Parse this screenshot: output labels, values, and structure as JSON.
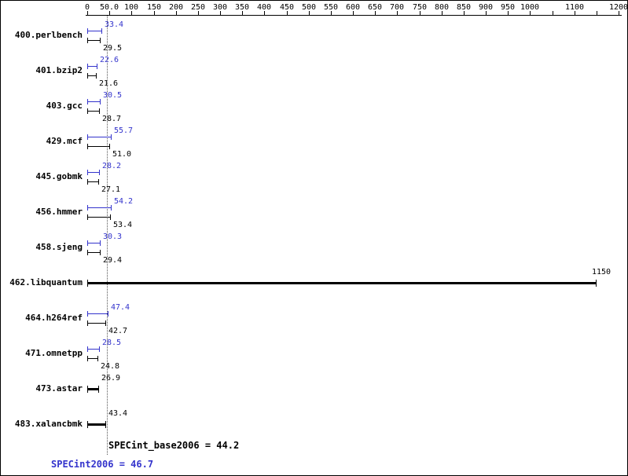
{
  "chart_data": {
    "type": "bar",
    "orientation": "horizontal",
    "axis": {
      "min": 0,
      "max": 1200,
      "tick_step": 50,
      "tick_labels": [
        {
          "v": 0,
          "t": "0"
        },
        {
          "v": 50,
          "t": "50.0"
        },
        {
          "v": 100,
          "t": "100"
        },
        {
          "v": 150,
          "t": "150"
        },
        {
          "v": 200,
          "t": "200"
        },
        {
          "v": 250,
          "t": "250"
        },
        {
          "v": 300,
          "t": "300"
        },
        {
          "v": 350,
          "t": "350"
        },
        {
          "v": 400,
          "t": "400"
        },
        {
          "v": 450,
          "t": "450"
        },
        {
          "v": 500,
          "t": "500"
        },
        {
          "v": 550,
          "t": "550"
        },
        {
          "v": 600,
          "t": "600"
        },
        {
          "v": 650,
          "t": "650"
        },
        {
          "v": 700,
          "t": "700"
        },
        {
          "v": 750,
          "t": "750"
        },
        {
          "v": 800,
          "t": "800"
        },
        {
          "v": 850,
          "t": "850"
        },
        {
          "v": 900,
          "t": "900"
        },
        {
          "v": 950,
          "t": "950"
        },
        {
          "v": 1000,
          "t": "1000"
        },
        {
          "v": 1100,
          "t": "1100"
        },
        {
          "v": 1200,
          "t": "1200"
        }
      ]
    },
    "series": [
      {
        "name": "SPECint2006 (peak)",
        "color": "#3333cc"
      },
      {
        "name": "SPECint_base2006 (base)",
        "color": "#000000"
      }
    ],
    "benchmarks": [
      {
        "name": "400.perlbench",
        "peak": "33.4",
        "base": "29.5"
      },
      {
        "name": "401.bzip2",
        "peak": "22.6",
        "base": "21.6"
      },
      {
        "name": "403.gcc",
        "peak": "30.5",
        "base": "28.7"
      },
      {
        "name": "429.mcf",
        "peak": "55.7",
        "base": "51.0"
      },
      {
        "name": "445.gobmk",
        "peak": "28.2",
        "base": "27.1"
      },
      {
        "name": "456.hmmer",
        "peak": "54.2",
        "base": "53.4"
      },
      {
        "name": "458.sjeng",
        "peak": "30.3",
        "base": "29.4"
      },
      {
        "name": "462.libquantum",
        "single": "1150"
      },
      {
        "name": "464.h264ref",
        "peak": "47.4",
        "base": "42.7"
      },
      {
        "name": "471.omnetpp",
        "peak": "28.5",
        "base": "24.8"
      },
      {
        "name": "473.astar",
        "single": "26.9"
      },
      {
        "name": "483.xalancbmk",
        "single": "43.4"
      }
    ],
    "summary": {
      "base_label": "SPECint_base2006 = 44.2",
      "peak_label": "SPECint2006 = 46.7",
      "base_value": 44.2,
      "peak_value": 46.7
    }
  }
}
